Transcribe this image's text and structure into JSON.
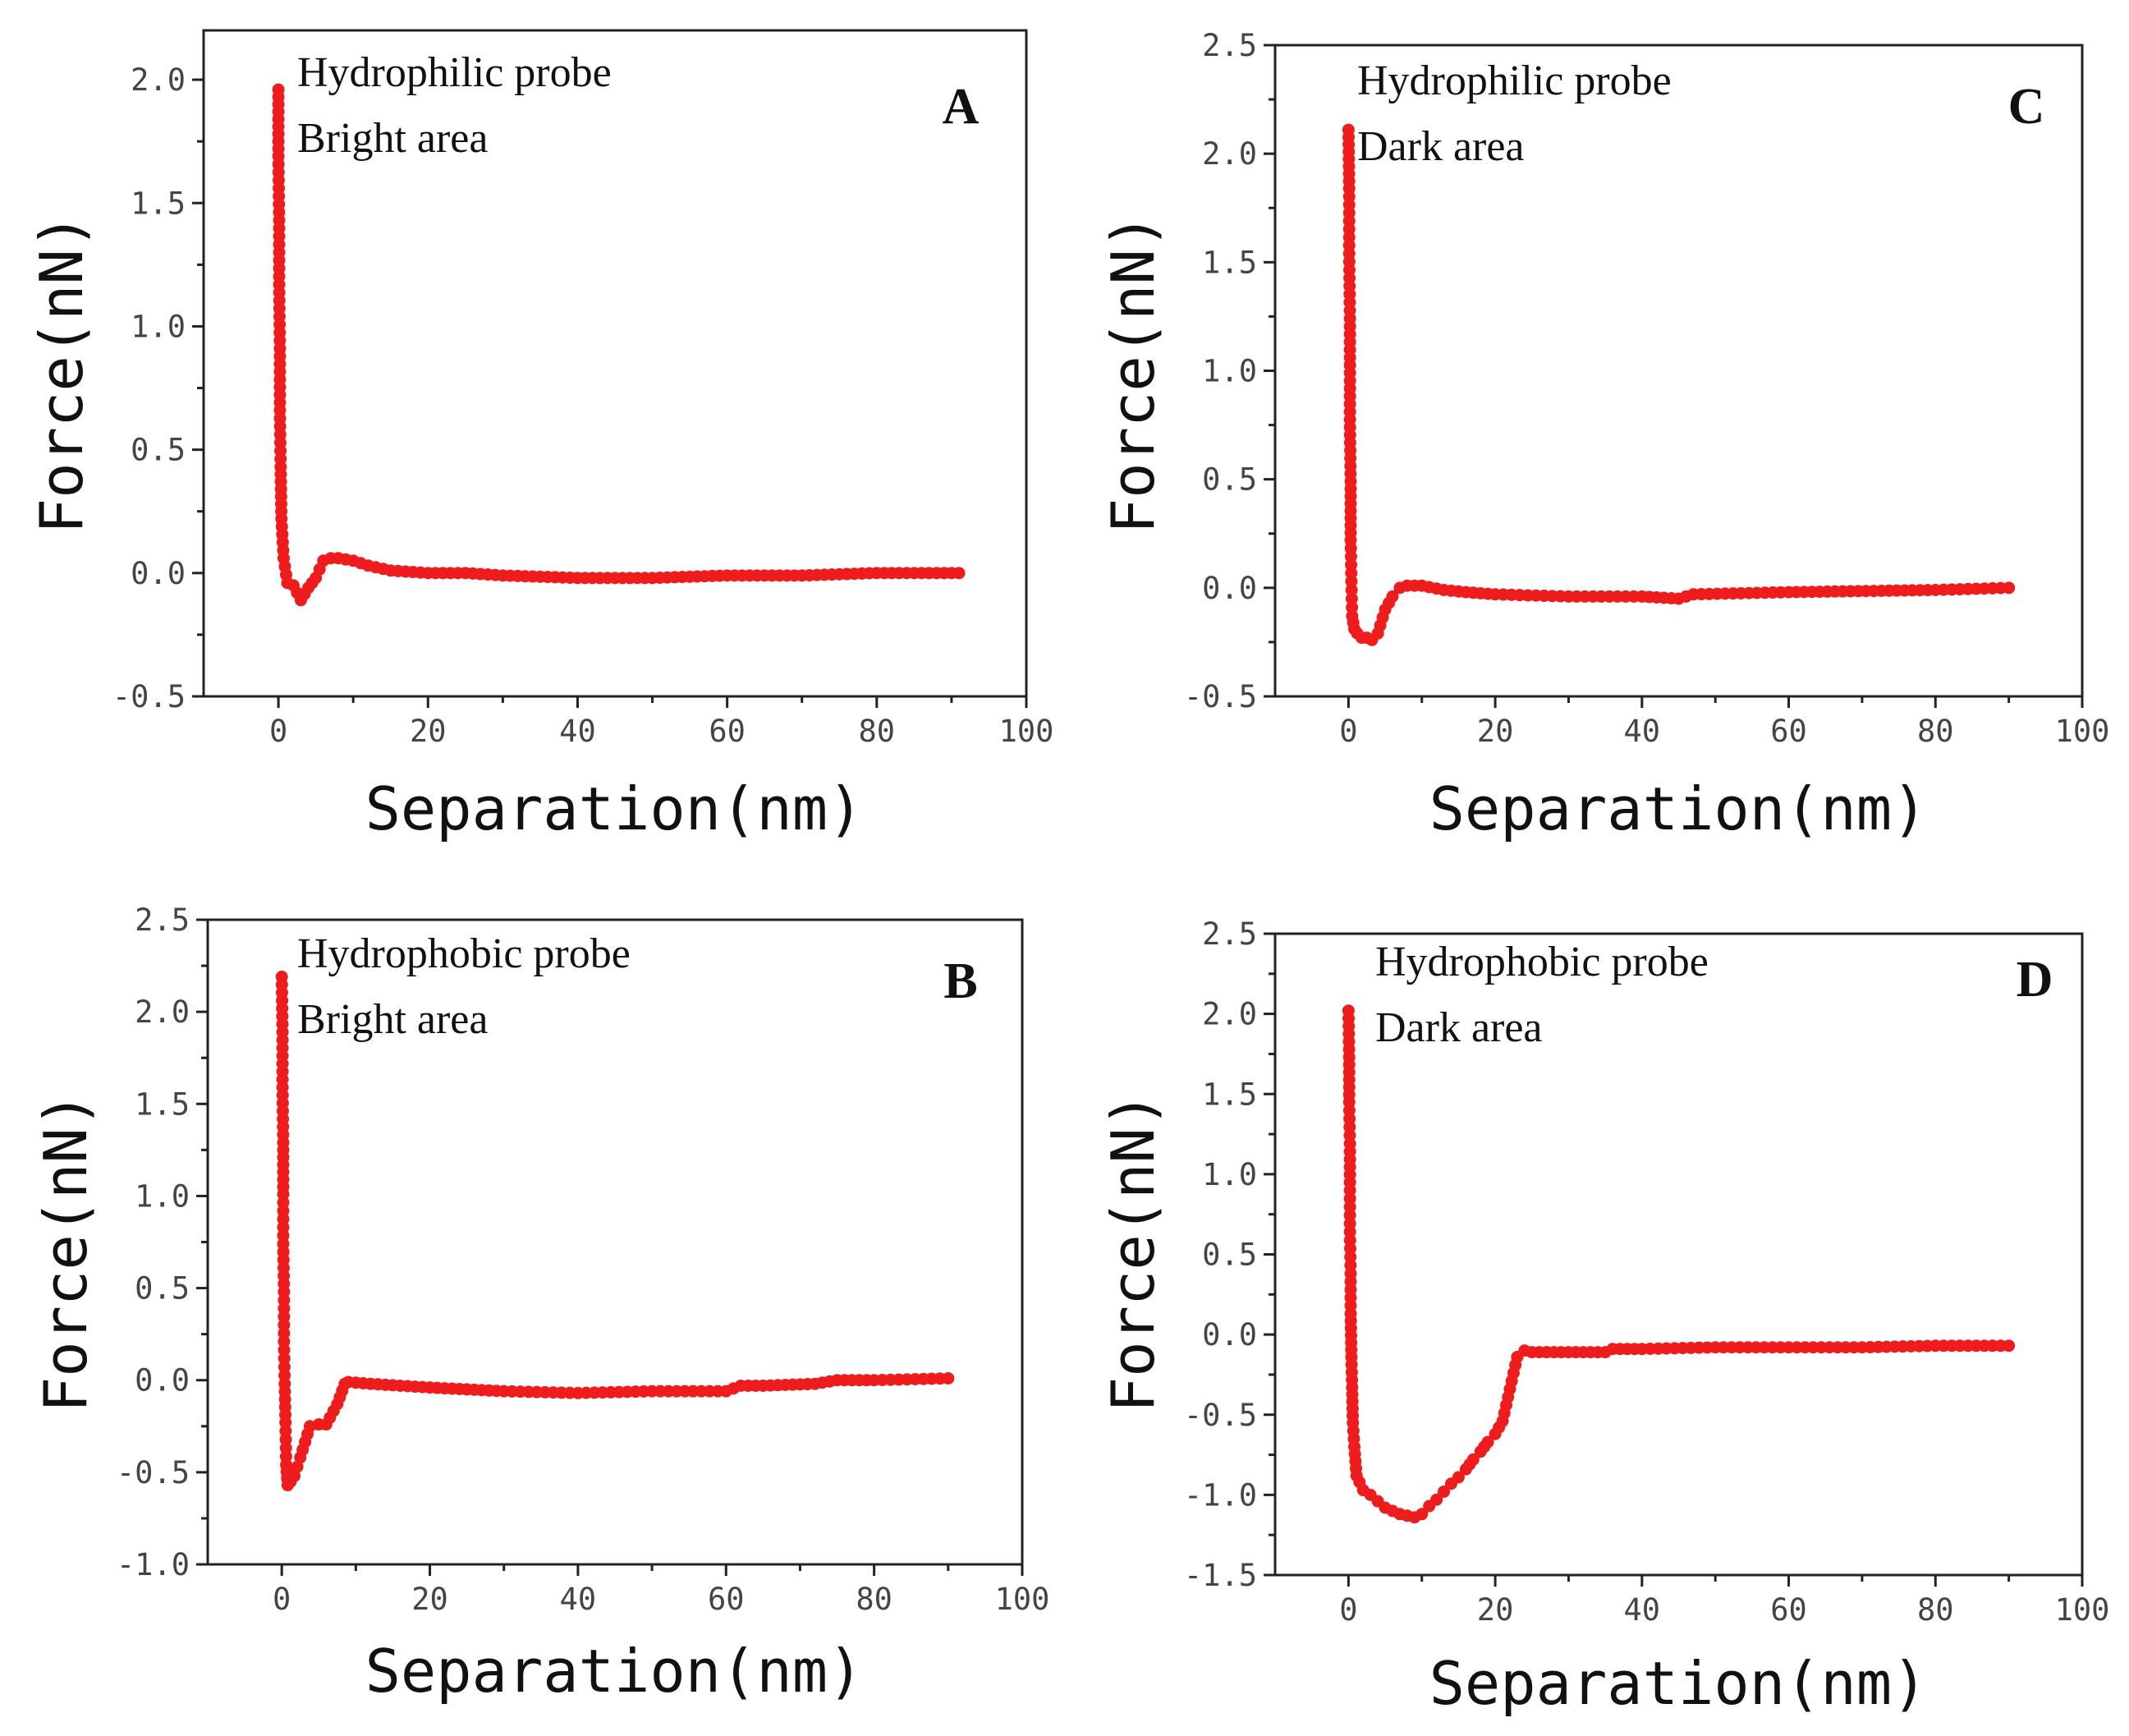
{
  "figure": {
    "background": "#ffffff",
    "series_color": "#ee1c1c"
  },
  "chart_data": [
    {
      "panel": "A",
      "type": "line",
      "annotation": [
        "Hydrophilic probe",
        "Bright area"
      ],
      "xlabel": "Separation(nm)",
      "ylabel": "Force(nN)",
      "xlim": [
        -10,
        100
      ],
      "ylim": [
        -0.5,
        2.2
      ],
      "xticks": [
        0,
        20,
        40,
        60,
        80,
        100
      ],
      "yticks": [
        -0.5,
        0.0,
        0.5,
        1.0,
        1.5,
        2.0
      ],
      "xtick_labels": [
        "0",
        "20",
        "40",
        "60",
        "80",
        "100"
      ],
      "ytick_labels": [
        "-0.5",
        "0.0",
        "0.5",
        "1.0",
        "1.5",
        "2.0"
      ],
      "series": [
        {
          "name": "Hydrophilic probe, Bright area",
          "x": [
            0,
            0,
            0.1,
            0.1,
            0.2,
            0.2,
            0.3,
            0.4,
            0.7,
            1.2,
            2,
            3,
            4,
            5,
            6,
            7,
            8,
            10,
            12,
            15,
            20,
            25,
            30,
            40,
            45,
            50,
            60,
            70,
            80,
            91
          ],
          "y": [
            1.96,
            1.69,
            1.43,
            1.17,
            0.91,
            0.66,
            0.43,
            0.22,
            0.06,
            -0.04,
            -0.05,
            -0.11,
            -0.06,
            -0.02,
            0.05,
            0.06,
            0.06,
            0.05,
            0.03,
            0.01,
            0.0,
            0.0,
            -0.01,
            -0.02,
            -0.02,
            -0.02,
            -0.01,
            -0.01,
            0.0,
            0.0
          ]
        }
      ]
    },
    {
      "panel": "C",
      "type": "line",
      "annotation": [
        "Hydrophilic probe",
        "Dark area"
      ],
      "xlabel": "Separation(nm)",
      "ylabel": "Force(nN)",
      "xlim": [
        -10,
        100
      ],
      "ylim": [
        -0.5,
        2.5
      ],
      "xticks": [
        0,
        20,
        40,
        60,
        80,
        100
      ],
      "yticks": [
        -0.5,
        0.0,
        0.5,
        1.0,
        1.5,
        2.0,
        2.5
      ],
      "xtick_labels": [
        "0",
        "20",
        "40",
        "60",
        "80",
        "100"
      ],
      "ytick_labels": [
        "-0.5",
        "0.0",
        "0.5",
        "1.0",
        "1.5",
        "2.0",
        "2.5"
      ],
      "series": [
        {
          "name": "Hydrophilic probe, Dark area",
          "x": [
            0,
            0.1,
            0.1,
            0.2,
            0.2,
            0.2,
            0.3,
            0.3,
            0.4,
            0.5,
            0.8,
            1.2,
            1.8,
            2.5,
            3.2,
            4,
            5,
            6,
            7,
            8,
            10,
            13,
            16,
            20,
            30,
            40,
            45,
            47,
            60,
            80,
            90
          ],
          "y": [
            2.11,
            1.84,
            1.54,
            1.24,
            0.99,
            0.74,
            0.49,
            0.22,
            0.03,
            -0.13,
            -0.19,
            -0.21,
            -0.23,
            -0.23,
            -0.24,
            -0.21,
            -0.1,
            -0.04,
            -0.0,
            0.01,
            0.01,
            -0.01,
            -0.02,
            -0.03,
            -0.04,
            -0.04,
            -0.05,
            -0.03,
            -0.02,
            -0.01,
            0.0
          ]
        }
      ]
    },
    {
      "panel": "B",
      "type": "line",
      "annotation": [
        "Hydrophobic probe",
        "Bright area"
      ],
      "xlabel": "Separation(nm)",
      "ylabel": "Force(nN)",
      "xlim": [
        -10,
        100
      ],
      "ylim": [
        -1.0,
        2.5
      ],
      "xticks": [
        0,
        20,
        40,
        60,
        80,
        100
      ],
      "yticks": [
        -1.0,
        -0.5,
        0.0,
        0.5,
        1.0,
        1.5,
        2.0,
        2.5
      ],
      "xtick_labels": [
        "0",
        "20",
        "40",
        "60",
        "80",
        "100"
      ],
      "ytick_labels": [
        "-1.0",
        "-0.5",
        "0.0",
        "0.5",
        "1.0",
        "1.5",
        "2.0",
        "2.5"
      ],
      "series": [
        {
          "name": "Hydrophobic probe, Bright area",
          "x": [
            0,
            0.1,
            0.1,
            0.2,
            0.2,
            0.2,
            0.3,
            0.3,
            0.4,
            0.5,
            0.6,
            0.8,
            1.2,
            1.7,
            2.5,
            3.8,
            5,
            6,
            7.5,
            8.5,
            9,
            12,
            20,
            30,
            40,
            50,
            60,
            62,
            65,
            72,
            75,
            80,
            90
          ],
          "y": [
            2.19,
            1.89,
            1.59,
            1.29,
            1.01,
            0.74,
            0.48,
            0.21,
            -0.02,
            -0.23,
            -0.46,
            -0.57,
            -0.55,
            -0.52,
            -0.42,
            -0.25,
            -0.24,
            -0.24,
            -0.13,
            -0.02,
            -0.01,
            -0.02,
            -0.04,
            -0.06,
            -0.07,
            -0.06,
            -0.06,
            -0.03,
            -0.03,
            -0.02,
            0.0,
            0.0,
            0.01
          ]
        }
      ]
    },
    {
      "panel": "D",
      "type": "line",
      "annotation": [
        "Hydrophobic probe",
        "Dark area"
      ],
      "xlabel": "Separation(nm)",
      "ylabel": "Force(nN)",
      "xlim": [
        -10,
        100
      ],
      "ylim": [
        -1.5,
        2.5
      ],
      "xticks": [
        0,
        20,
        40,
        60,
        80,
        100
      ],
      "yticks": [
        -1.5,
        -1.0,
        -0.5,
        0.0,
        0.5,
        1.0,
        1.5,
        2.0,
        2.5
      ],
      "xtick_labels": [
        "0",
        "20",
        "40",
        "60",
        "80",
        "100"
      ],
      "ytick_labels": [
        "-1.5",
        "-1.0",
        "-0.5",
        "0.0",
        "0.5",
        "1.0",
        "1.5",
        "2.0",
        "2.5"
      ],
      "series": [
        {
          "name": "Hydrophobic probe, Dark area",
          "x": [
            0,
            0.1,
            0.1,
            0.2,
            0.2,
            0.2,
            0.3,
            0.3,
            0.4,
            0.5,
            0.6,
            0.8,
            1.1,
            1.5,
            2,
            3,
            4,
            5,
            6,
            7,
            8,
            9,
            10,
            11,
            12,
            13,
            14,
            15,
            16,
            17,
            18,
            19,
            20,
            21,
            23,
            24,
            25,
            30,
            35,
            36,
            40,
            50,
            60,
            70,
            80,
            90
          ],
          "y": [
            2.02,
            1.73,
            1.45,
            1.19,
            0.9,
            0.64,
            0.38,
            0.13,
            -0.14,
            -0.33,
            -0.55,
            -0.7,
            -0.88,
            -0.92,
            -0.97,
            -1.0,
            -1.04,
            -1.08,
            -1.1,
            -1.12,
            -1.13,
            -1.14,
            -1.12,
            -1.07,
            -1.03,
            -0.98,
            -0.93,
            -0.89,
            -0.84,
            -0.78,
            -0.73,
            -0.67,
            -0.62,
            -0.54,
            -0.14,
            -0.1,
            -0.11,
            -0.11,
            -0.11,
            -0.09,
            -0.09,
            -0.08,
            -0.08,
            -0.08,
            -0.07,
            -0.07
          ]
        }
      ]
    }
  ]
}
